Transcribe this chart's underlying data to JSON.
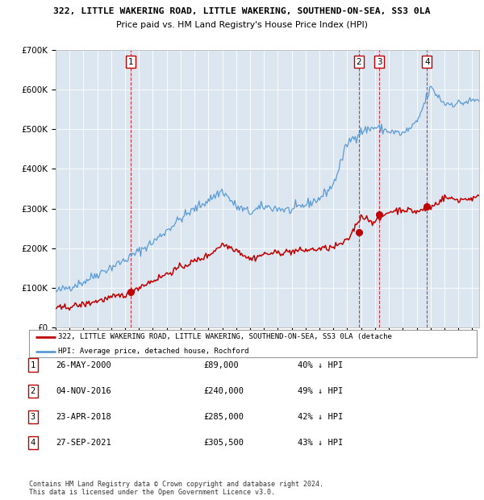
{
  "title": "322, LITTLE WAKERING ROAD, LITTLE WAKERING, SOUTHEND-ON-SEA, SS3 0LA",
  "subtitle": "Price paid vs. HM Land Registry's House Price Index (HPI)",
  "hpi_color": "#5b9bd5",
  "price_color": "#c00000",
  "bg_color": "#dce6f1",
  "ylim": [
    0,
    700000
  ],
  "yticks": [
    0,
    100000,
    200000,
    300000,
    400000,
    500000,
    600000,
    700000
  ],
  "ytick_labels": [
    "£0",
    "£100K",
    "£200K",
    "£300K",
    "£400K",
    "£500K",
    "£600K",
    "£700K"
  ],
  "xlim_start": 1995.0,
  "xlim_end": 2025.5,
  "sale_dates": [
    2000.4,
    2016.84,
    2018.31,
    2021.74
  ],
  "sale_prices": [
    89000,
    240000,
    285000,
    305500
  ],
  "sale_labels": [
    "1",
    "2",
    "3",
    "4"
  ],
  "transactions": [
    {
      "label": "1",
      "date": "26-MAY-2000",
      "price": "£89,000",
      "pct": "40% ↓ HPI"
    },
    {
      "label": "2",
      "date": "04-NOV-2016",
      "price": "£240,000",
      "pct": "49% ↓ HPI"
    },
    {
      "label": "3",
      "date": "23-APR-2018",
      "price": "£285,000",
      "pct": "42% ↓ HPI"
    },
    {
      "label": "4",
      "date": "27-SEP-2021",
      "price": "£305,500",
      "pct": "43% ↓ HPI"
    }
  ],
  "legend_price_label": "322, LITTLE WAKERING ROAD, LITTLE WAKERING, SOUTHEND-ON-SEA, SS3 0LA (detache",
  "legend_hpi_label": "HPI: Average price, detached house, Rochford",
  "footer": "Contains HM Land Registry data © Crown copyright and database right 2024.\nThis data is licensed under the Open Government Licence v3.0.",
  "hpi_key_years": [
    1995,
    1997,
    1998,
    2000,
    2002,
    2004,
    2007,
    2008,
    2009,
    2010,
    2012,
    2014,
    2015,
    2016,
    2017,
    2018,
    2019,
    2020,
    2021,
    2022,
    2023,
    2024,
    2025.5
  ],
  "hpi_key_prices": [
    90000,
    115000,
    135000,
    170000,
    215000,
    275000,
    345000,
    305000,
    290000,
    305000,
    295000,
    325000,
    360000,
    465000,
    495000,
    505000,
    495000,
    488000,
    515000,
    605000,
    565000,
    565000,
    575000
  ],
  "price_key_years": [
    1995,
    1997,
    1998,
    2000,
    2001,
    2002,
    2004,
    2006,
    2007,
    2008,
    2009,
    2010,
    2012,
    2014,
    2015,
    2016,
    2017,
    2018,
    2019,
    2020,
    2021,
    2022,
    2023,
    2024,
    2025.5
  ],
  "price_key_prices": [
    47000,
    58000,
    67000,
    83000,
    102000,
    118000,
    152000,
    182000,
    210000,
    197000,
    172000,
    185000,
    192000,
    198000,
    202000,
    218000,
    282000,
    265000,
    292000,
    298000,
    292000,
    302000,
    328000,
    322000,
    328000
  ]
}
